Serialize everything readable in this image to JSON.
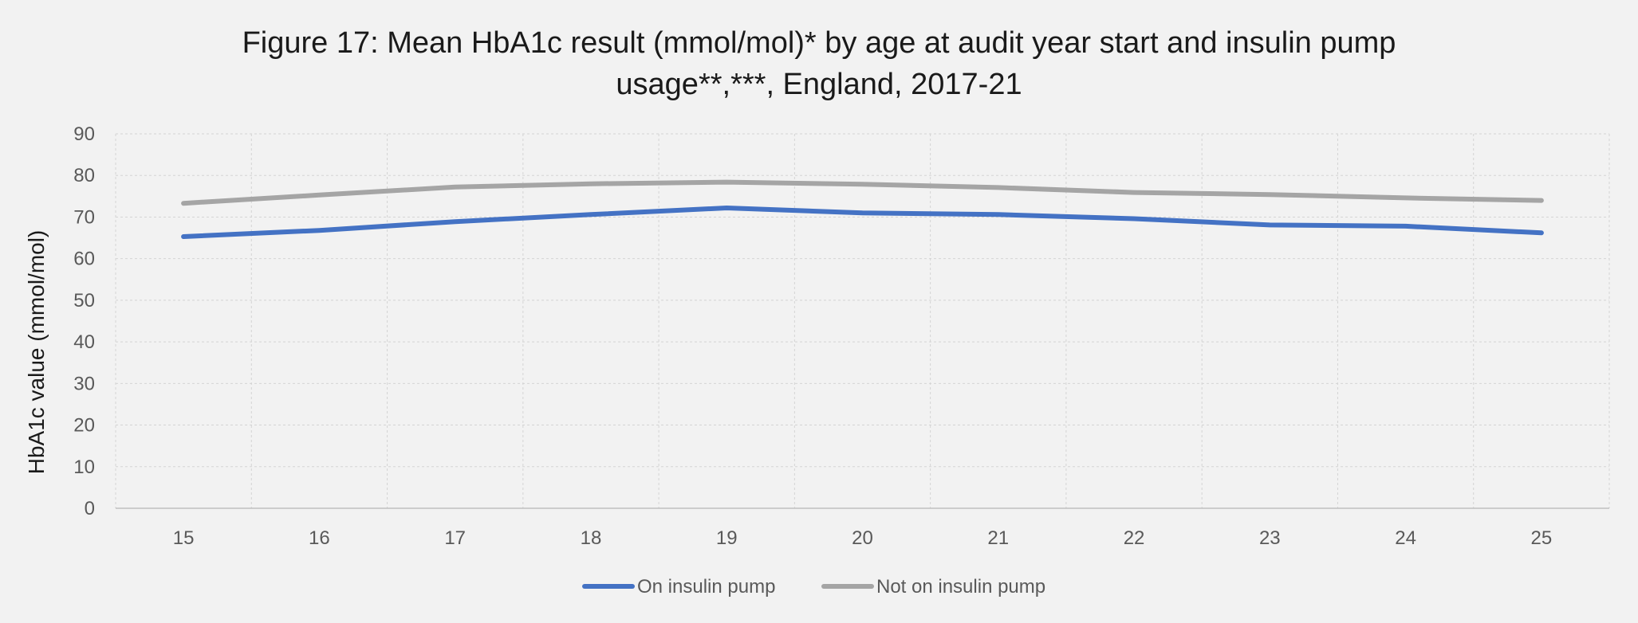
{
  "chart_data": {
    "type": "line",
    "title_lines": [
      "Figure 17: Mean HbA1c result (mmol/mol)* by age at audit year start and insulin pump",
      "usage**,***, England, 2017-21"
    ],
    "xlabel": "",
    "ylabel": "HbA1c value (mmol/mol)",
    "x": [
      15,
      16,
      17,
      18,
      19,
      20,
      21,
      22,
      23,
      24,
      25
    ],
    "ylim": [
      0,
      90
    ],
    "yticks": [
      0,
      10,
      20,
      30,
      40,
      50,
      60,
      70,
      80,
      90
    ],
    "grid": true,
    "legend_position": "bottom",
    "series": [
      {
        "name": "On insulin pump",
        "color": "#4472c4",
        "values": [
          65.3,
          66.8,
          68.9,
          70.6,
          72.2,
          71.0,
          70.6,
          69.6,
          68.1,
          67.8,
          66.2
        ]
      },
      {
        "name": "Not on insulin pump",
        "color": "#a5a5a5",
        "values": [
          73.3,
          75.3,
          77.2,
          78.0,
          78.4,
          77.9,
          77.1,
          75.9,
          75.4,
          74.6,
          74.0
        ]
      }
    ]
  }
}
